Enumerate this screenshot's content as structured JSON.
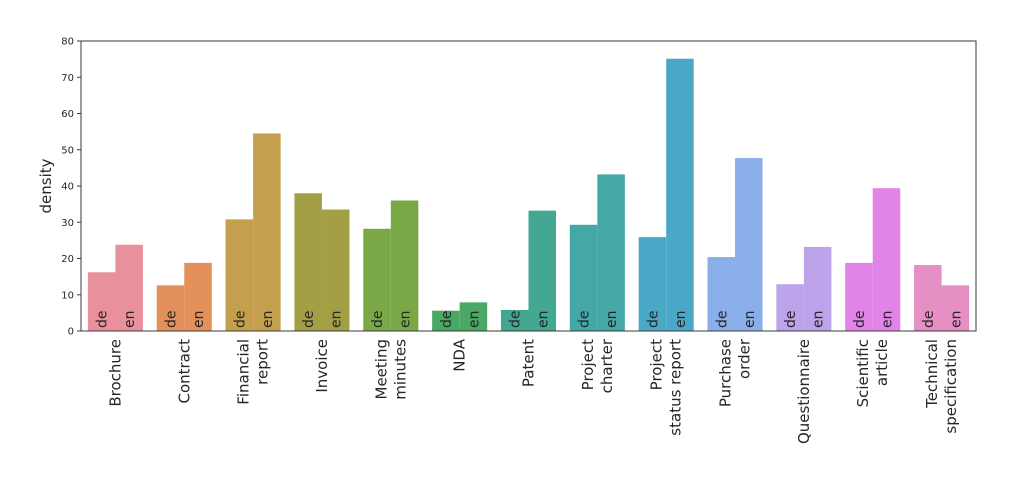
{
  "chart_data": {
    "type": "bar",
    "ylabel": "density",
    "ylim": [
      0,
      80
    ],
    "yticks": [
      "0",
      "10",
      "20",
      "30",
      "40",
      "50",
      "60",
      "70",
      "80"
    ],
    "groups": [
      {
        "name": "Brochure",
        "lines": [
          "Brochure"
        ],
        "color": "#e8909c",
        "bars": [
          {
            "lang": "de",
            "value": 16.2
          },
          {
            "lang": "en",
            "value": 23.8
          }
        ]
      },
      {
        "name": "Contract",
        "lines": [
          "Contract"
        ],
        "color": "#e4905a",
        "bars": [
          {
            "lang": "de",
            "value": 12.6
          },
          {
            "lang": "en",
            "value": 18.8
          }
        ]
      },
      {
        "name": "Financial report",
        "lines": [
          "Financial",
          "report"
        ],
        "color": "#c4a04e",
        "bars": [
          {
            "lang": "de",
            "value": 30.8
          },
          {
            "lang": "en",
            "value": 54.5
          }
        ]
      },
      {
        "name": "Invoice",
        "lines": [
          "Invoice"
        ],
        "color": "#a39f45",
        "bars": [
          {
            "lang": "de",
            "value": 38.0
          },
          {
            "lang": "en",
            "value": 33.5
          }
        ]
      },
      {
        "name": "Meeting minutes",
        "lines": [
          "Meeting",
          "minutes"
        ],
        "color": "#7aa847",
        "bars": [
          {
            "lang": "de",
            "value": 28.2
          },
          {
            "lang": "en",
            "value": 36.0
          }
        ]
      },
      {
        "name": "NDA",
        "lines": [
          "NDA"
        ],
        "color": "#48a864",
        "bars": [
          {
            "lang": "de",
            "value": 5.6
          },
          {
            "lang": "en",
            "value": 7.9
          }
        ]
      },
      {
        "name": "Patent",
        "lines": [
          "Patent"
        ],
        "color": "#43a891",
        "bars": [
          {
            "lang": "de",
            "value": 5.8
          },
          {
            "lang": "en",
            "value": 33.2
          }
        ]
      },
      {
        "name": "Project charter",
        "lines": [
          "Project",
          "charter"
        ],
        "color": "#44a8a7",
        "bars": [
          {
            "lang": "de",
            "value": 29.3
          },
          {
            "lang": "en",
            "value": 43.2
          }
        ]
      },
      {
        "name": "Project status report",
        "lines": [
          "Project",
          "status report"
        ],
        "color": "#49a8c6",
        "bars": [
          {
            "lang": "de",
            "value": 25.9
          },
          {
            "lang": "en",
            "value": 75.1
          }
        ]
      },
      {
        "name": "Purchase order",
        "lines": [
          "Purchase",
          "order"
        ],
        "color": "#8aaee8",
        "bars": [
          {
            "lang": "de",
            "value": 20.4
          },
          {
            "lang": "en",
            "value": 47.7
          }
        ]
      },
      {
        "name": "Questionnaire",
        "lines": [
          "Questionnaire"
        ],
        "color": "#bca3ea",
        "bars": [
          {
            "lang": "de",
            "value": 12.9
          },
          {
            "lang": "en",
            "value": 23.2
          }
        ]
      },
      {
        "name": "Scientific article",
        "lines": [
          "Scientific",
          "article"
        ],
        "color": "#e283e7",
        "bars": [
          {
            "lang": "de",
            "value": 18.8
          },
          {
            "lang": "en",
            "value": 39.4
          }
        ]
      },
      {
        "name": "Technical specification",
        "lines": [
          "Technical",
          "specification"
        ],
        "color": "#e68fc4",
        "bars": [
          {
            "lang": "de",
            "value": 18.2
          },
          {
            "lang": "en",
            "value": 12.6
          }
        ]
      }
    ]
  }
}
